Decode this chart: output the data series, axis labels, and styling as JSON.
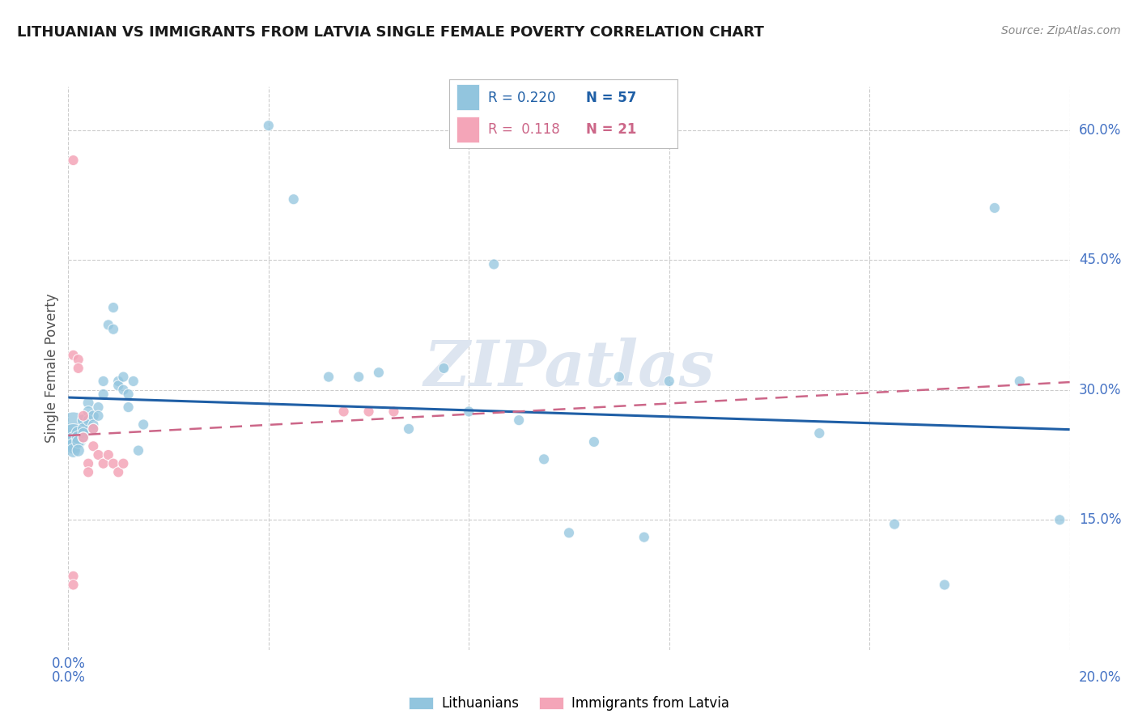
{
  "title": "LITHUANIAN VS IMMIGRANTS FROM LATVIA SINGLE FEMALE POVERTY CORRELATION CHART",
  "source": "Source: ZipAtlas.com",
  "ylabel": "Single Female Poverty",
  "xlim": [
    0.0,
    0.2
  ],
  "ylim": [
    0.0,
    0.65
  ],
  "xticks": [
    0.0,
    0.04,
    0.08,
    0.12,
    0.16,
    0.2
  ],
  "yticks_right": [
    0.15,
    0.3,
    0.45,
    0.6
  ],
  "ytick_labels_right": [
    "15.0%",
    "30.0%",
    "45.0%",
    "60.0%"
  ],
  "blue_color": "#92c5de",
  "pink_color": "#f4a5b8",
  "blue_line_color": "#1f5fa6",
  "pink_line_color": "#cc6688",
  "watermark": "ZIPatlas",
  "watermark_color": "#dde5f0",
  "blue_r": 0.22,
  "blue_n": 57,
  "pink_r": 0.118,
  "pink_n": 21,
  "background_color": "#ffffff",
  "grid_color": "#cccccc",
  "title_color": "#1a1a1a",
  "axis_color": "#4472c4",
  "ylabel_color": "#555555",
  "blue_x": [
    0.001,
    0.001,
    0.001,
    0.001,
    0.001,
    0.002,
    0.002,
    0.002,
    0.002,
    0.003,
    0.003,
    0.003,
    0.003,
    0.004,
    0.004,
    0.004,
    0.005,
    0.005,
    0.005,
    0.006,
    0.006,
    0.007,
    0.007,
    0.008,
    0.009,
    0.009,
    0.01,
    0.01,
    0.011,
    0.011,
    0.012,
    0.012,
    0.013,
    0.014,
    0.015,
    0.04,
    0.045,
    0.052,
    0.058,
    0.062,
    0.068,
    0.075,
    0.08,
    0.085,
    0.09,
    0.095,
    0.1,
    0.105,
    0.11,
    0.115,
    0.12,
    0.15,
    0.165,
    0.175,
    0.185,
    0.19,
    0.198
  ],
  "blue_y": [
    0.255,
    0.245,
    0.24,
    0.235,
    0.23,
    0.25,
    0.245,
    0.24,
    0.23,
    0.265,
    0.255,
    0.25,
    0.245,
    0.285,
    0.275,
    0.265,
    0.27,
    0.26,
    0.255,
    0.28,
    0.27,
    0.31,
    0.295,
    0.375,
    0.395,
    0.37,
    0.31,
    0.305,
    0.315,
    0.3,
    0.295,
    0.28,
    0.31,
    0.23,
    0.26,
    0.605,
    0.52,
    0.315,
    0.315,
    0.32,
    0.255,
    0.325,
    0.275,
    0.445,
    0.265,
    0.22,
    0.135,
    0.24,
    0.315,
    0.13,
    0.31,
    0.25,
    0.145,
    0.075,
    0.51,
    0.31,
    0.15
  ],
  "blue_sizes": [
    900,
    600,
    300,
    200,
    160,
    160,
    150,
    130,
    120,
    120,
    110,
    100,
    100,
    100,
    100,
    100,
    100,
    90,
    90,
    90,
    90,
    90,
    90,
    90,
    90,
    90,
    90,
    90,
    90,
    90,
    90,
    90,
    90,
    90,
    90,
    90,
    90,
    90,
    90,
    90,
    90,
    90,
    90,
    90,
    90,
    90,
    90,
    90,
    90,
    90,
    90,
    90,
    90,
    90,
    90,
    90,
    90
  ],
  "pink_x": [
    0.001,
    0.001,
    0.001,
    0.001,
    0.002,
    0.002,
    0.003,
    0.003,
    0.004,
    0.004,
    0.005,
    0.005,
    0.006,
    0.007,
    0.008,
    0.009,
    0.01,
    0.011,
    0.055,
    0.06,
    0.065
  ],
  "pink_y": [
    0.565,
    0.34,
    0.085,
    0.075,
    0.335,
    0.325,
    0.245,
    0.27,
    0.215,
    0.205,
    0.235,
    0.255,
    0.225,
    0.215,
    0.225,
    0.215,
    0.205,
    0.215,
    0.275,
    0.275,
    0.275
  ],
  "pink_sizes": [
    90,
    90,
    90,
    90,
    90,
    90,
    90,
    90,
    90,
    90,
    90,
    90,
    90,
    90,
    90,
    90,
    90,
    90,
    90,
    90,
    90
  ]
}
